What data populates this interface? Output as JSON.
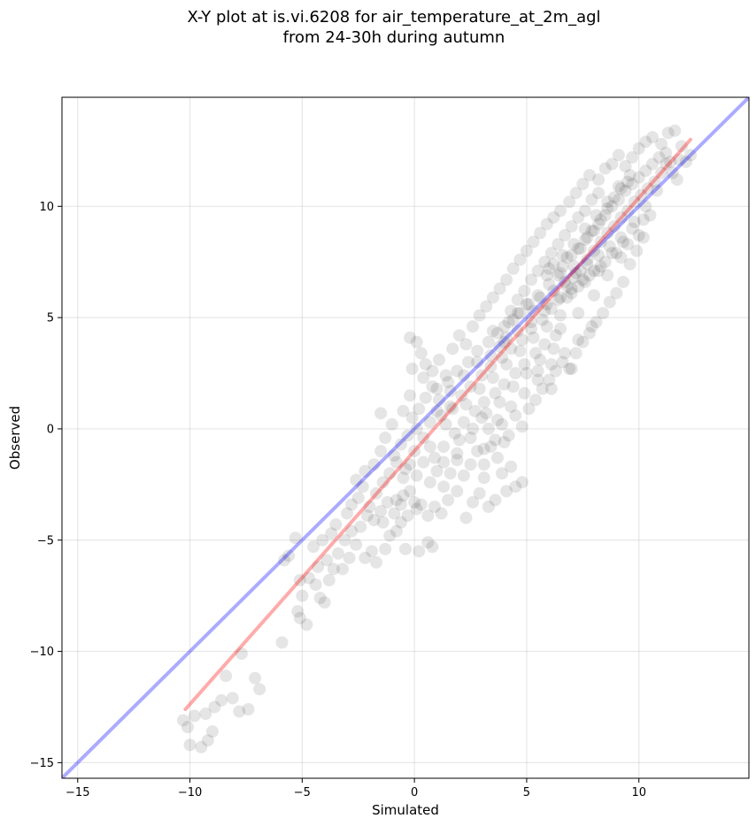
{
  "chart_data": {
    "type": "scatter",
    "title_line1": "X-Y plot at is.vi.6208 for air_temperature_at_2m_agl",
    "title_line2": "from 24-30h during autumn",
    "xlabel": "Simulated",
    "ylabel": "Observed",
    "xlim": [
      -15.7,
      14.9
    ],
    "ylim": [
      -15.7,
      14.9
    ],
    "xticks": [
      -15,
      -10,
      -5,
      0,
      5,
      10
    ],
    "yticks": [
      -15,
      -10,
      -5,
      0,
      5,
      10
    ],
    "grid": true,
    "marker_color": "#000000",
    "marker_alpha": 0.1,
    "identity_line": {
      "color": "#0000ff",
      "alpha": 0.33,
      "from": [
        -15.7,
        -15.7
      ],
      "to": [
        14.9,
        14.9
      ]
    },
    "fit_line": {
      "color": "#ff0000",
      "alpha": 0.33,
      "from": [
        -10.2,
        -12.6
      ],
      "to": [
        12.3,
        13.0
      ]
    },
    "points": [
      [
        -10.3,
        -13.1
      ],
      [
        -10.1,
        -13.4
      ],
      [
        -10.0,
        -14.2
      ],
      [
        -9.8,
        -12.9
      ],
      [
        -9.5,
        -14.3
      ],
      [
        -9.3,
        -12.8
      ],
      [
        -9.2,
        -14.0
      ],
      [
        -9.0,
        -13.6
      ],
      [
        -8.9,
        -12.5
      ],
      [
        -8.6,
        -12.2
      ],
      [
        -8.1,
        -12.1
      ],
      [
        -7.8,
        -12.7
      ],
      [
        -7.4,
        -12.6
      ],
      [
        -7.1,
        -11.2
      ],
      [
        -6.9,
        -11.7
      ],
      [
        -8.4,
        -11.1
      ],
      [
        -7.7,
        -10.1
      ],
      [
        -5.9,
        -9.6
      ],
      [
        -5.8,
        -5.9
      ],
      [
        -5.6,
        -5.7
      ],
      [
        -5.3,
        -4.9
      ],
      [
        -5.2,
        -8.2
      ],
      [
        -5.1,
        -8.5
      ],
      [
        -4.8,
        -8.8
      ],
      [
        -5.0,
        -7.5
      ],
      [
        -5.1,
        -6.8
      ],
      [
        -4.7,
        -6.7
      ],
      [
        -4.4,
        -7.0
      ],
      [
        -4.2,
        -7.6
      ],
      [
        -4.0,
        -7.8
      ],
      [
        -3.8,
        -6.8
      ],
      [
        -3.6,
        -6.3
      ],
      [
        -3.2,
        -6.3
      ],
      [
        -4.5,
        -5.3
      ],
      [
        -4.1,
        -5.0
      ],
      [
        -3.7,
        -4.7
      ],
      [
        -3.5,
        -4.3
      ],
      [
        -3.0,
        -3.8
      ],
      [
        -2.8,
        -3.4
      ],
      [
        -2.5,
        -3.1
      ],
      [
        -2.9,
        -5.8
      ],
      [
        -2.6,
        -5.2
      ],
      [
        -2.2,
        -5.8
      ],
      [
        -1.9,
        -5.5
      ],
      [
        -1.7,
        -6.0
      ],
      [
        -1.3,
        -5.4
      ],
      [
        -1.1,
        -4.8
      ],
      [
        -0.8,
        -4.6
      ],
      [
        -0.6,
        -4.2
      ],
      [
        -0.4,
        -5.4
      ],
      [
        -1.4,
        -4.2
      ],
      [
        -2.0,
        -3.5
      ],
      [
        -2.3,
        -2.6
      ],
      [
        -2.6,
        -2.3
      ],
      [
        -2.2,
        -1.9
      ],
      [
        -1.8,
        -1.6
      ],
      [
        -1.5,
        -1.0
      ],
      [
        -1.3,
        -0.4
      ],
      [
        -1.0,
        0.2
      ],
      [
        -1.5,
        0.7
      ],
      [
        -0.8,
        -3.2
      ],
      [
        -0.5,
        -3.0
      ],
      [
        -0.2,
        -2.8
      ],
      [
        0.1,
        -3.6
      ],
      [
        0.3,
        -3.4
      ],
      [
        0.6,
        -3.9
      ],
      [
        0.9,
        -3.5
      ],
      [
        1.2,
        -3.8
      ],
      [
        1.5,
        -3.2
      ],
      [
        1.9,
        -2.8
      ],
      [
        2.3,
        -4.0
      ],
      [
        2.6,
        -3.3
      ],
      [
        2.9,
        -2.9
      ],
      [
        3.3,
        -3.5
      ],
      [
        3.6,
        -3.2
      ],
      [
        4.1,
        -2.8
      ],
      [
        4.5,
        -2.6
      ],
      [
        4.8,
        -2.4
      ],
      [
        0.2,
        -5.5
      ],
      [
        0.6,
        -5.1
      ],
      [
        0.8,
        -5.3
      ],
      [
        3.1,
        -2.2
      ],
      [
        3.9,
        -2.0
      ],
      [
        4.3,
        -1.7
      ],
      [
        -0.9,
        -1.2
      ],
      [
        -0.6,
        -0.7
      ],
      [
        -0.4,
        -1.8
      ],
      [
        -0.3,
        -0.3
      ],
      [
        -0.1,
        0.5
      ],
      [
        0.0,
        -1.0
      ],
      [
        0.2,
        0.9
      ],
      [
        0.4,
        -0.4
      ],
      [
        0.5,
        1.4
      ],
      [
        0.7,
        0.3
      ],
      [
        0.9,
        -1.3
      ],
      [
        1.0,
        1.8
      ],
      [
        1.2,
        0.6
      ],
      [
        1.3,
        -0.8
      ],
      [
        1.5,
        2.1
      ],
      [
        1.6,
        1.0
      ],
      [
        1.8,
        -0.2
      ],
      [
        1.9,
        2.6
      ],
      [
        2.1,
        1.5
      ],
      [
        2.2,
        0.3
      ],
      [
        2.4,
        3.0
      ],
      [
        2.5,
        1.9
      ],
      [
        2.7,
        0.8
      ],
      [
        2.8,
        3.5
      ],
      [
        3.0,
        2.4
      ],
      [
        3.1,
        1.2
      ],
      [
        3.3,
        3.9
      ],
      [
        3.4,
        2.8
      ],
      [
        3.6,
        1.6
      ],
      [
        3.7,
        4.3
      ],
      [
        3.9,
        3.2
      ],
      [
        4.0,
        2.0
      ],
      [
        4.2,
        4.8
      ],
      [
        4.3,
        3.6
      ],
      [
        4.5,
        2.5
      ],
      [
        4.6,
        5.2
      ],
      [
        4.8,
        4.0
      ],
      [
        4.9,
        2.9
      ],
      [
        5.1,
        5.6
      ],
      [
        5.2,
        4.5
      ],
      [
        5.4,
        3.4
      ],
      [
        5.5,
        6.0
      ],
      [
        5.7,
        4.9
      ],
      [
        5.8,
        3.8
      ],
      [
        6.0,
        6.5
      ],
      [
        6.1,
        5.4
      ],
      [
        6.3,
        4.2
      ],
      [
        -0.2,
        4.1
      ],
      [
        0.1,
        3.9
      ],
      [
        0.3,
        3.4
      ],
      [
        -0.1,
        2.7
      ],
      [
        0.5,
        2.9
      ],
      [
        0.8,
        2.6
      ],
      [
        1.1,
        3.1
      ],
      [
        1.4,
        2.4
      ],
      [
        1.7,
        3.6
      ],
      [
        2.0,
        4.2
      ],
      [
        2.3,
        3.8
      ],
      [
        2.6,
        4.6
      ],
      [
        2.9,
        5.1
      ],
      [
        3.2,
        5.5
      ],
      [
        3.5,
        5.9
      ],
      [
        3.8,
        6.3
      ],
      [
        4.1,
        6.7
      ],
      [
        4.4,
        7.2
      ],
      [
        4.7,
        7.6
      ],
      [
        5.0,
        8.0
      ],
      [
        5.3,
        8.4
      ],
      [
        5.6,
        8.8
      ],
      [
        5.9,
        9.2
      ],
      [
        6.2,
        9.5
      ],
      [
        6.5,
        9.8
      ],
      [
        6.9,
        10.2
      ],
      [
        7.2,
        10.6
      ],
      [
        7.5,
        11.0
      ],
      [
        7.8,
        11.4
      ],
      [
        8.2,
        11.2
      ],
      [
        8.5,
        11.7
      ],
      [
        8.8,
        11.9
      ],
      [
        9.1,
        12.3
      ],
      [
        9.4,
        11.8
      ],
      [
        9.7,
        12.2
      ],
      [
        10.0,
        12.6
      ],
      [
        10.3,
        12.9
      ],
      [
        10.6,
        13.1
      ],
      [
        11.0,
        12.8
      ],
      [
        11.3,
        13.3
      ],
      [
        11.6,
        13.4
      ],
      [
        11.2,
        12.4
      ],
      [
        11.8,
        12.1
      ],
      [
        12.3,
        12.3
      ],
      [
        11.7,
        11.2
      ],
      [
        3.0,
        0.5
      ],
      [
        3.3,
        0.0
      ],
      [
        3.6,
        -0.5
      ],
      [
        3.9,
        0.2
      ],
      [
        4.2,
        -0.3
      ],
      [
        4.5,
        0.6
      ],
      [
        4.8,
        0.1
      ],
      [
        5.1,
        0.9
      ],
      [
        5.4,
        1.3
      ],
      [
        5.7,
        1.8
      ],
      [
        6.0,
        2.2
      ],
      [
        6.3,
        2.6
      ],
      [
        6.6,
        3.0
      ],
      [
        6.9,
        2.7
      ],
      [
        7.2,
        3.4
      ],
      [
        7.5,
        3.9
      ],
      [
        7.8,
        4.3
      ],
      [
        8.1,
        4.8
      ],
      [
        8.4,
        5.2
      ],
      [
        8.7,
        5.7
      ],
      [
        9.0,
        6.1
      ],
      [
        9.3,
        6.6
      ],
      [
        9.6,
        7.4
      ],
      [
        9.9,
        8.0
      ],
      [
        10.2,
        8.6
      ],
      [
        5.5,
        2.6
      ],
      [
        6.1,
        1.8
      ],
      [
        7.0,
        2.7
      ],
      [
        6.5,
        4.5
      ],
      [
        7.3,
        5.2
      ],
      [
        8.0,
        6.0
      ],
      [
        8.6,
        6.9
      ],
      [
        9.2,
        7.7
      ],
      [
        6.4,
        6.9
      ],
      [
        6.6,
        7.3
      ],
      [
        6.8,
        6.4
      ],
      [
        7.0,
        7.8
      ],
      [
        7.1,
        6.8
      ],
      [
        7.3,
        8.1
      ],
      [
        7.4,
        7.1
      ],
      [
        7.6,
        8.5
      ],
      [
        7.7,
        7.6
      ],
      [
        7.9,
        8.9
      ],
      [
        8.0,
        8.0
      ],
      [
        8.2,
        9.2
      ],
      [
        8.3,
        8.4
      ],
      [
        8.5,
        9.6
      ],
      [
        8.6,
        8.8
      ],
      [
        8.8,
        10.0
      ],
      [
        8.9,
        9.1
      ],
      [
        9.1,
        10.3
      ],
      [
        9.2,
        9.5
      ],
      [
        9.4,
        10.7
      ],
      [
        9.5,
        9.8
      ],
      [
        9.7,
        11.0
      ],
      [
        9.8,
        10.2
      ],
      [
        10.0,
        11.3
      ],
      [
        10.1,
        10.5
      ],
      [
        10.3,
        11.6
      ],
      [
        10.4,
        10.8
      ],
      [
        10.6,
        11.9
      ],
      [
        10.7,
        11.1
      ],
      [
        10.9,
        12.2
      ],
      [
        11.0,
        11.5
      ],
      [
        11.2,
        11.9
      ],
      [
        11.4,
        12.0
      ],
      [
        11.5,
        11.5
      ],
      [
        11.9,
        12.7
      ],
      [
        12.1,
        12.0
      ],
      [
        5.9,
        5.6
      ],
      [
        6.2,
        6.2
      ],
      [
        6.5,
        5.9
      ],
      [
        6.7,
        6.6
      ],
      [
        7.0,
        6.3
      ],
      [
        7.2,
        7.0
      ],
      [
        7.5,
        6.7
      ],
      [
        7.7,
        7.4
      ],
      [
        8.0,
        7.1
      ],
      [
        8.2,
        7.8
      ],
      [
        8.5,
        7.5
      ],
      [
        8.7,
        8.2
      ],
      [
        9.0,
        7.9
      ],
      [
        9.2,
        8.6
      ],
      [
        9.5,
        8.3
      ],
      [
        9.7,
        9.0
      ],
      [
        10.0,
        8.7
      ],
      [
        10.2,
        9.4
      ],
      [
        10.5,
        9.6
      ],
      [
        6.8,
        5.9
      ],
      [
        7.3,
        6.4
      ],
      [
        7.8,
        6.9
      ],
      [
        8.3,
        7.3
      ],
      [
        8.8,
        7.9
      ],
      [
        9.3,
        8.4
      ],
      [
        9.8,
        9.3
      ],
      [
        10.3,
        10.0
      ],
      [
        10.8,
        10.7
      ],
      [
        6.0,
        7.2
      ],
      [
        6.6,
        7.8
      ],
      [
        7.1,
        8.3
      ],
      [
        7.6,
        9.0
      ],
      [
        8.1,
        9.6
      ],
      [
        8.6,
        10.2
      ],
      [
        9.1,
        10.9
      ],
      [
        9.6,
        11.4
      ],
      [
        0.8,
        1.9
      ],
      [
        1.1,
        1.3
      ],
      [
        1.4,
        0.2
      ],
      [
        1.7,
        0.9
      ],
      [
        2.0,
        -0.5
      ],
      [
        2.3,
        1.1
      ],
      [
        2.6,
        0.0
      ],
      [
        2.9,
        1.8
      ],
      [
        3.2,
        0.7
      ],
      [
        3.5,
        2.3
      ],
      [
        3.8,
        1.2
      ],
      [
        4.1,
        2.9
      ],
      [
        4.4,
        1.9
      ],
      [
        4.7,
        3.5
      ],
      [
        5.0,
        2.5
      ],
      [
        5.3,
        4.1
      ],
      [
        5.6,
        3.1
      ],
      [
        5.9,
        4.6
      ],
      [
        6.2,
        3.6
      ],
      [
        6.5,
        5.1
      ],
      [
        -0.5,
        0.8
      ],
      [
        -0.2,
        1.5
      ],
      [
        0.1,
        0.0
      ],
      [
        0.4,
        2.3
      ],
      [
        0.7,
        -0.8
      ],
      [
        1.0,
        0.8
      ],
      [
        1.3,
        -1.5
      ],
      [
        1.6,
        1.7
      ],
      [
        1.9,
        -1.1
      ],
      [
        2.2,
        2.4
      ],
      [
        2.5,
        -0.4
      ],
      [
        2.8,
        3.0
      ],
      [
        3.1,
        -0.9
      ],
      [
        3.4,
        3.3
      ],
      [
        3.7,
        0.4
      ],
      [
        4.0,
        3.9
      ],
      [
        4.3,
        1.0
      ],
      [
        4.6,
        4.4
      ],
      [
        4.9,
        1.6
      ],
      [
        5.2,
        4.8
      ],
      [
        5.5,
        2.2
      ],
      [
        5.8,
        5.3
      ],
      [
        6.1,
        2.9
      ],
      [
        6.4,
        5.8
      ],
      [
        6.7,
        3.4
      ],
      [
        7.0,
        6.1
      ],
      [
        7.3,
        4.0
      ],
      [
        7.6,
        6.6
      ],
      [
        7.9,
        4.6
      ],
      [
        8.2,
        7.1
      ],
      [
        4.0,
        4.6
      ],
      [
        4.3,
        5.3
      ],
      [
        4.6,
        5.8
      ],
      [
        4.9,
        6.2
      ],
      [
        5.2,
        6.7
      ],
      [
        5.5,
        7.1
      ],
      [
        5.8,
        7.5
      ],
      [
        6.1,
        7.9
      ],
      [
        6.4,
        8.3
      ],
      [
        6.7,
        8.7
      ],
      [
        7.0,
        9.1
      ],
      [
        7.3,
        9.5
      ],
      [
        7.6,
        9.8
      ],
      [
        7.9,
        10.3
      ],
      [
        8.2,
        10.6
      ],
      [
        3.5,
        4.4
      ],
      [
        3.8,
        3.7
      ],
      [
        4.1,
        4.1
      ],
      [
        4.4,
        4.9
      ],
      [
        4.7,
        5.2
      ],
      [
        5.0,
        5.6
      ],
      [
        5.3,
        5.3
      ],
      [
        5.6,
        5.9
      ],
      [
        5.9,
        6.9
      ],
      [
        6.2,
        7.4
      ],
      [
        6.5,
        7.0
      ],
      [
        6.8,
        7.7
      ],
      [
        7.1,
        7.3
      ],
      [
        7.4,
        8.1
      ],
      [
        7.7,
        8.6
      ],
      [
        8.0,
        8.9
      ],
      [
        8.3,
        9.4
      ],
      [
        8.6,
        9.9
      ],
      [
        8.9,
        10.4
      ],
      [
        9.2,
        10.8
      ],
      [
        9.5,
        11.1
      ],
      [
        -1.7,
        -2.9
      ],
      [
        -1.4,
        -2.4
      ],
      [
        -1.1,
        -2.0
      ],
      [
        -0.8,
        -1.5
      ],
      [
        -0.5,
        -2.2
      ],
      [
        -0.2,
        -1.6
      ],
      [
        0.1,
        -2.1
      ],
      [
        0.4,
        -1.5
      ],
      [
        0.7,
        -2.4
      ],
      [
        1.0,
        -1.9
      ],
      [
        1.3,
        -2.6
      ],
      [
        1.6,
        -2.0
      ],
      [
        1.9,
        -1.4
      ],
      [
        2.2,
        -2.1
      ],
      [
        2.5,
        -1.6
      ],
      [
        2.8,
        -1.0
      ],
      [
        3.1,
        -1.6
      ],
      [
        3.4,
        -0.8
      ],
      [
        3.7,
        -1.3
      ],
      [
        4.0,
        -0.6
      ],
      [
        -2.4,
        -4.4
      ],
      [
        -2.1,
        -3.9
      ],
      [
        -1.8,
        -4.1
      ],
      [
        -1.5,
        -3.7
      ],
      [
        -1.2,
        -3.3
      ],
      [
        -0.9,
        -3.8
      ],
      [
        -0.6,
        -3.4
      ],
      [
        -0.3,
        -3.9
      ],
      [
        0.0,
        -3.3
      ],
      [
        -3.1,
        -5.0
      ],
      [
        -2.8,
        -4.6
      ],
      [
        -3.4,
        -5.6
      ],
      [
        -3.9,
        -5.9
      ],
      [
        -4.3,
        -6.2
      ]
    ]
  }
}
